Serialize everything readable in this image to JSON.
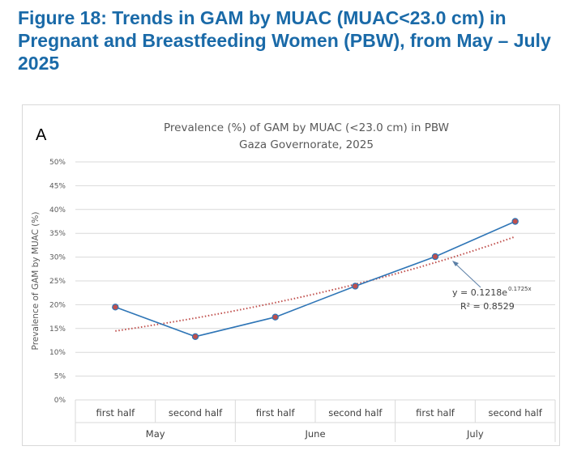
{
  "figure_title": "Figure 18: Trends in GAM by MUAC (MUAC<23.0 cm) in Pregnant and Breastfeeding Women (PBW), from May – July 2025",
  "colors": {
    "title": "#1a6aa8",
    "series_line": "#2e75b6",
    "marker_fill": "#c0504d",
    "trendline": "#c0504d",
    "gridline": "#d9d9d9"
  },
  "chart_data": {
    "type": "line",
    "panel_label": "A",
    "title": "Prevalence (%) of GAM by MUAC (<23.0 cm) in PBW",
    "subtitle": "Gaza Governorate, 2025",
    "xlabel": "",
    "ylabel": "Prevalence of GAM by MUAC (%)",
    "ylim": [
      0,
      50
    ],
    "yticks": [
      "0%",
      "5%",
      "10%",
      "15%",
      "20%",
      "25%",
      "30%",
      "35%",
      "40%",
      "45%",
      "50%"
    ],
    "categories": [
      "first half",
      "second half",
      "first half",
      "second half",
      "first half",
      "second half"
    ],
    "groups": [
      "May",
      "June",
      "July"
    ],
    "series": [
      {
        "name": "Prevalence",
        "values": [
          19.5,
          13.3,
          17.4,
          23.9,
          30.1,
          37.5
        ]
      }
    ],
    "trendline": {
      "type": "exponential",
      "a": 0.1218,
      "b": 0.1725,
      "eq_prefix": "y = 0.1218e",
      "eq_exponent": "0.1725x",
      "r2_label": "R² = 0.8529"
    },
    "grid": true
  }
}
